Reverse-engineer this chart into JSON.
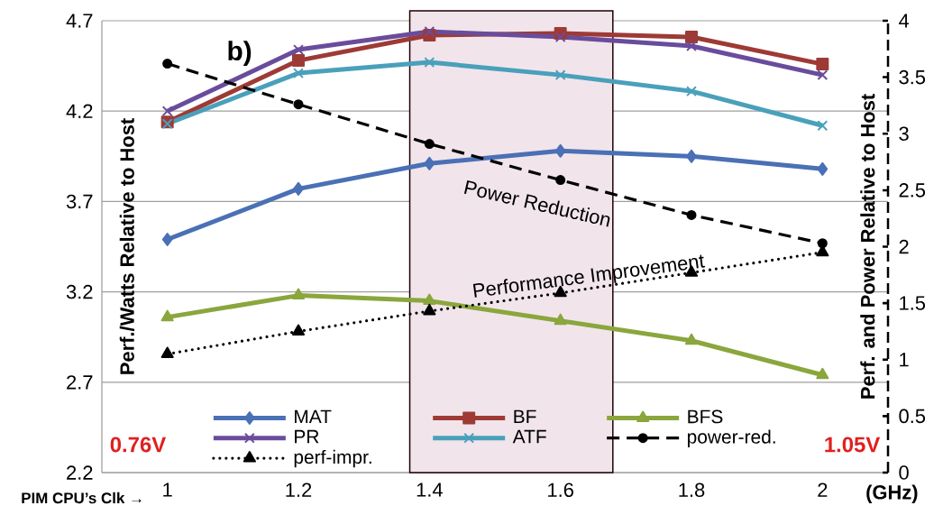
{
  "chart_data": {
    "type": "line",
    "x": [
      1,
      1.2,
      1.4,
      1.6,
      1.8,
      2
    ],
    "xlabel": "(GHz)",
    "ylabel": "Perf./Watts   Relative to Host",
    "y2label": "Perf. and Power Relative to Host",
    "xlim": [
      0.9,
      2.1
    ],
    "xticks": [
      1,
      1.2,
      1.4,
      1.6,
      1.8,
      2
    ],
    "ylim": [
      2.2,
      4.7
    ],
    "yticks": [
      2.2,
      2.7,
      3.2,
      3.7,
      4.2,
      4.7
    ],
    "y2lim": [
      0,
      4
    ],
    "y2ticks": [
      0,
      0.5,
      1,
      1.5,
      2,
      2.5,
      3,
      3.5,
      4
    ],
    "grid": "y",
    "legend": "bottom",
    "bands": [
      {
        "axis": "x",
        "from": 1.37,
        "to": 1.68,
        "color": "#f1e5eb"
      }
    ],
    "series": [
      {
        "name": "MAT",
        "color": "#4a70b5",
        "marker": "diamond",
        "values": [
          3.49,
          3.77,
          3.91,
          3.98,
          3.95,
          3.88
        ]
      },
      {
        "name": "BF",
        "color": "#9e3a35",
        "marker": "square",
        "values": [
          4.14,
          4.48,
          4.62,
          4.63,
          4.61,
          4.46
        ]
      },
      {
        "name": "BFS",
        "color": "#8aa63d",
        "marker": "triangle",
        "values": [
          3.06,
          3.18,
          3.15,
          3.04,
          2.93,
          2.74
        ]
      },
      {
        "name": "PR",
        "color": "#6a4c9c",
        "marker": "cross",
        "values": [
          4.2,
          4.54,
          4.64,
          4.61,
          4.56,
          4.4
        ]
      },
      {
        "name": "ATF",
        "color": "#4aa0bb",
        "marker": "cross",
        "values": [
          4.13,
          4.41,
          4.47,
          4.4,
          4.31,
          4.12
        ]
      },
      {
        "name": "power-red.",
        "color": "#000000",
        "marker": "circle",
        "line_style": "dashed",
        "axis": "y2",
        "values": [
          3.62,
          3.26,
          2.91,
          2.59,
          2.28,
          2.03
        ]
      },
      {
        "name": "perf-impr.",
        "color": "#000000",
        "marker": "triangle",
        "line_style": "dotted",
        "axis": "y2",
        "values": [
          1.05,
          1.25,
          1.43,
          1.59,
          1.77,
          1.95
        ]
      }
    ],
    "annotations": [
      "b)",
      "Power Reduction",
      "Performance Improvement",
      "0.76V",
      "1.05V",
      "PIM CPU’s Clk →"
    ]
  }
}
